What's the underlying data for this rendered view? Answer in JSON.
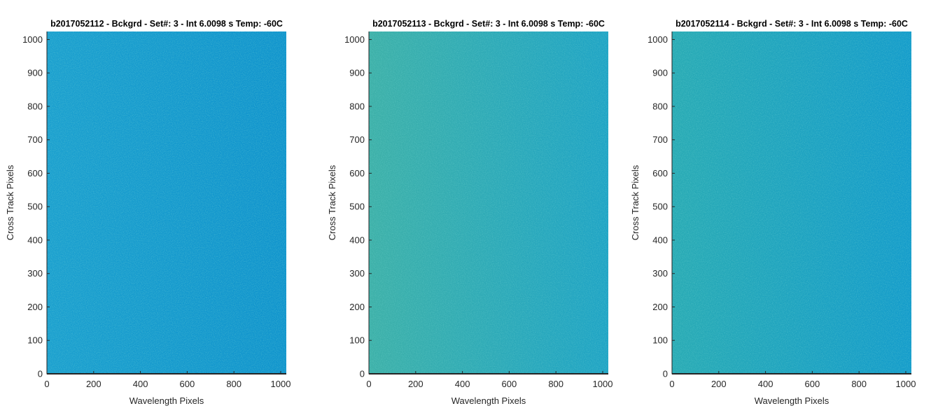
{
  "chart_data": [
    {
      "type": "heatmap",
      "title": "b2017052112 - Bckgrd - Set#: 3 - Int 6.0098 s Temp: -60C",
      "xlabel": "Wavelength Pixels",
      "ylabel": "Cross Track Pixels",
      "xlim": [
        0,
        1024
      ],
      "ylim": [
        0,
        1024
      ],
      "xticks": [
        0,
        200,
        400,
        600,
        800,
        1000
      ],
      "yticks": [
        0,
        100,
        200,
        300,
        400,
        500,
        600,
        700,
        800,
        900,
        1000
      ],
      "grid": false,
      "colors": {
        "left": "#1a9fcf",
        "right": "#0f93cd",
        "noise": "#2aa8b8"
      }
    },
    {
      "type": "heatmap",
      "title": "b2017052113 - Bckgrd - Set#: 3 - Int 6.0098 s Temp: -60C",
      "xlabel": "Wavelength Pixels",
      "ylabel": "Cross Track Pixels",
      "xlim": [
        0,
        1024
      ],
      "ylim": [
        0,
        1024
      ],
      "xticks": [
        0,
        200,
        400,
        600,
        800,
        1000
      ],
      "yticks": [
        0,
        100,
        200,
        300,
        400,
        500,
        600,
        700,
        800,
        900,
        1000
      ],
      "grid": false,
      "colors": {
        "left": "#3db0a8",
        "right": "#1ea3c5",
        "noise": "#5cbc92"
      }
    },
    {
      "type": "heatmap",
      "title": "b2017052114 - Bckgrd - Set#: 3 - Int 6.0098 s Temp: -60C",
      "xlabel": "Wavelength Pixels",
      "ylabel": "Cross Track Pixels",
      "xlim": [
        0,
        1024
      ],
      "ylim": [
        0,
        1024
      ],
      "xticks": [
        0,
        200,
        400,
        600,
        800,
        1000
      ],
      "yticks": [
        0,
        100,
        200,
        300,
        400,
        500,
        600,
        700,
        800,
        900,
        1000
      ],
      "grid": false,
      "colors": {
        "left": "#28aab4",
        "right": "#139bcb",
        "noise": "#45b4a6"
      }
    }
  ]
}
